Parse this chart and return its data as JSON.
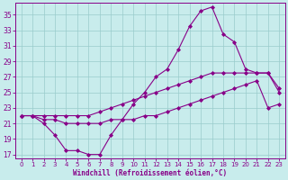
{
  "xlabel": "Windchill (Refroidissement éolien,°C)",
  "bg_color": "#c8ecec",
  "line_color": "#880088",
  "grid_color": "#99cccc",
  "xlim_min": -0.5,
  "xlim_max": 23.5,
  "ylim_min": 16.5,
  "ylim_max": 36.5,
  "yticks": [
    17,
    19,
    21,
    23,
    25,
    27,
    29,
    31,
    33,
    35
  ],
  "xticks": [
    0,
    1,
    2,
    3,
    4,
    5,
    6,
    7,
    8,
    9,
    10,
    11,
    12,
    13,
    14,
    15,
    16,
    17,
    18,
    19,
    20,
    21,
    22,
    23
  ],
  "line1_x": [
    0,
    1,
    2,
    3,
    4,
    5,
    6,
    7,
    8,
    9,
    10,
    11,
    12,
    13,
    14,
    15,
    16,
    17,
    18,
    19,
    20,
    21,
    22,
    23
  ],
  "line1_y": [
    22.0,
    22.0,
    21.0,
    19.5,
    17.5,
    17.5,
    17.0,
    17.0,
    19.5,
    21.5,
    23.5,
    25.0,
    27.0,
    28.0,
    30.5,
    33.5,
    35.5,
    36.0,
    32.5,
    31.5,
    28.0,
    27.5,
    27.5,
    25.0
  ],
  "line2_x": [
    0,
    1,
    2,
    3,
    4,
    5,
    6,
    7,
    8,
    9,
    10,
    11,
    12,
    13,
    14,
    15,
    16,
    17,
    18,
    19,
    20,
    21,
    22,
    23
  ],
  "line2_y": [
    22.0,
    22.0,
    22.0,
    22.0,
    22.0,
    22.0,
    22.0,
    22.5,
    23.0,
    23.5,
    24.0,
    24.5,
    25.0,
    25.5,
    26.0,
    26.5,
    27.0,
    27.5,
    27.5,
    27.5,
    27.5,
    27.5,
    27.5,
    25.5
  ],
  "line3_x": [
    0,
    1,
    2,
    3,
    4,
    5,
    6,
    7,
    8,
    9,
    10,
    11,
    12,
    13,
    14,
    15,
    16,
    17,
    18,
    19,
    20,
    21,
    22,
    23
  ],
  "line3_y": [
    22.0,
    22.0,
    21.5,
    21.5,
    21.0,
    21.0,
    21.0,
    21.0,
    21.5,
    21.5,
    21.5,
    22.0,
    22.0,
    22.5,
    23.0,
    23.5,
    24.0,
    24.5,
    25.0,
    25.5,
    26.0,
    26.5,
    23.0,
    23.5
  ]
}
